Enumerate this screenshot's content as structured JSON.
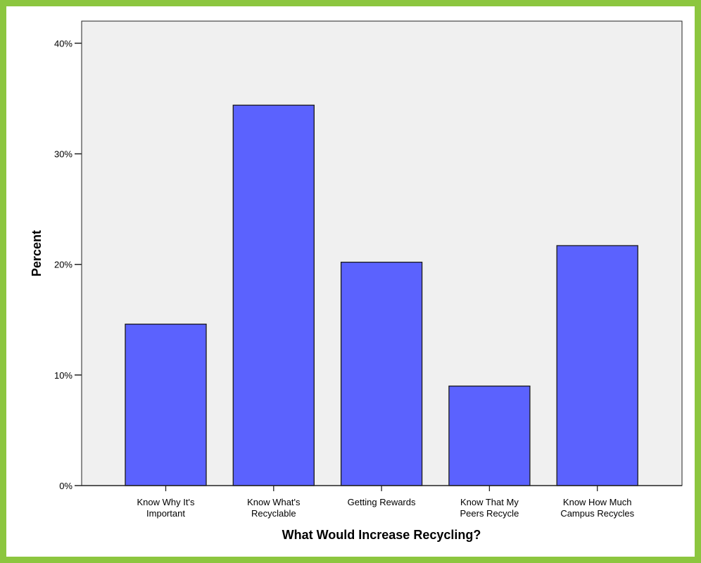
{
  "chart_data": {
    "type": "bar",
    "categories": [
      [
        "Know Why It's",
        "Important"
      ],
      [
        "Know What's",
        "Recyclable"
      ],
      [
        "Getting Rewards"
      ],
      [
        "Know That My",
        "Peers Recycle"
      ],
      [
        "Know How Much",
        "Campus Recycles"
      ]
    ],
    "values": [
      14.6,
      34.4,
      20.2,
      9.0,
      21.7
    ],
    "xlabel": "What Would Increase Recycling?",
    "ylabel": "Percent",
    "ylim": [
      0,
      42
    ],
    "yticks": [
      0,
      10,
      20,
      30,
      40
    ],
    "ytick_labels": [
      "0%",
      "10%",
      "20%",
      "30%",
      "40%"
    ],
    "grid": false,
    "colors": {
      "bar_fill": "#5b62fe",
      "bar_stroke": "#1a1a1a",
      "plot_background": "#f0f0f0",
      "frame_border": "#8cc63f"
    }
  }
}
